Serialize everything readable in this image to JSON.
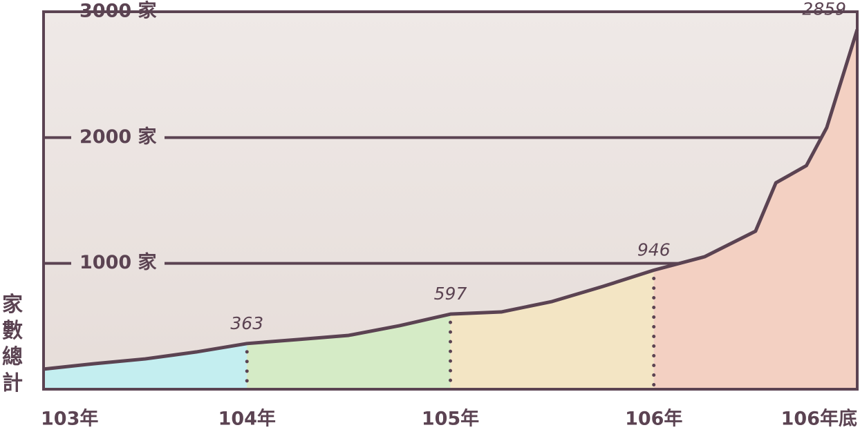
{
  "chart_data": {
    "type": "area",
    "y_label": "家數總計",
    "x": [
      0,
      0.25,
      0.5,
      0.75,
      1,
      1.25,
      1.5,
      1.75,
      2,
      2.25,
      2.5,
      2.75,
      3,
      3.25,
      3.5,
      3.6,
      3.75,
      3.85,
      4
    ],
    "series": [
      {
        "color": "#5b4352",
        "values": [
          160,
          203,
          241,
          296,
          363,
          395,
          428,
          505,
          597,
          614,
          697,
          817,
          946,
          1053,
          1256,
          1640,
          1777,
          2079,
          2859
        ]
      }
    ],
    "region_colors": [
      "#c4eef0",
      "#d5ebc6",
      "#f3e5c4",
      "#f3d0c2"
    ],
    "xlim": [
      0,
      4
    ],
    "xticks": [
      {
        "value": 0,
        "label": "103年"
      },
      {
        "value": 1,
        "label": "104年"
      },
      {
        "value": 2,
        "label": "105年"
      },
      {
        "value": 3,
        "label": "106年"
      },
      {
        "value": 4,
        "label": "106年底"
      }
    ],
    "ylim": [
      0,
      3000
    ],
    "yticks": [
      {
        "value": 1000,
        "label": "1000 家"
      },
      {
        "value": 2000,
        "label": "2000 家"
      },
      {
        "value": 3000,
        "label": "3000 家"
      }
    ],
    "grid": true
  }
}
